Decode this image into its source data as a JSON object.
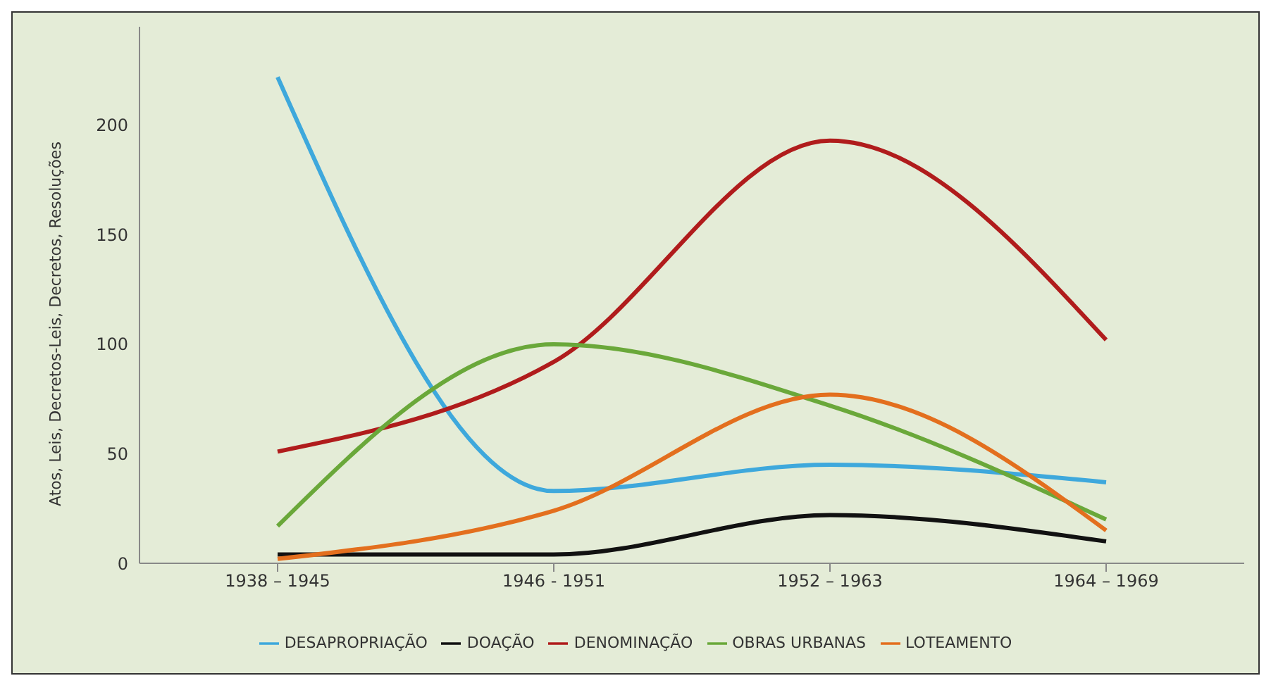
{
  "chart_data": {
    "type": "line",
    "ylabel": "Atos, Leis, Decretos-Leis, Decretos, Resoluções",
    "categories": [
      "1938 – 1945",
      "1946 - 1951",
      "1952 – 1963",
      "1964 – 1969"
    ],
    "series": [
      {
        "name": "DESAPROPRIAÇÃO",
        "color": "#3ea8dc",
        "values": [
          222,
          33,
          45,
          37
        ]
      },
      {
        "name": "DOAÇÃO",
        "color": "#111111",
        "values": [
          4,
          4,
          22,
          10
        ]
      },
      {
        "name": "DENOMINAÇÃO",
        "color": "#b01c1c",
        "values": [
          51,
          92,
          193,
          102
        ]
      },
      {
        "name": "OBRAS URBANAS",
        "color": "#6aa83a",
        "values": [
          17,
          100,
          72,
          20
        ]
      },
      {
        "name": "LOTEAMENTO",
        "color": "#e36f1e",
        "values": [
          2,
          24,
          77,
          15
        ]
      }
    ],
    "ylim": [
      0,
      245
    ],
    "yticks": [
      0,
      50,
      100,
      150,
      200
    ],
    "legend": "bottom",
    "marker": "none",
    "line_style": "solid"
  }
}
